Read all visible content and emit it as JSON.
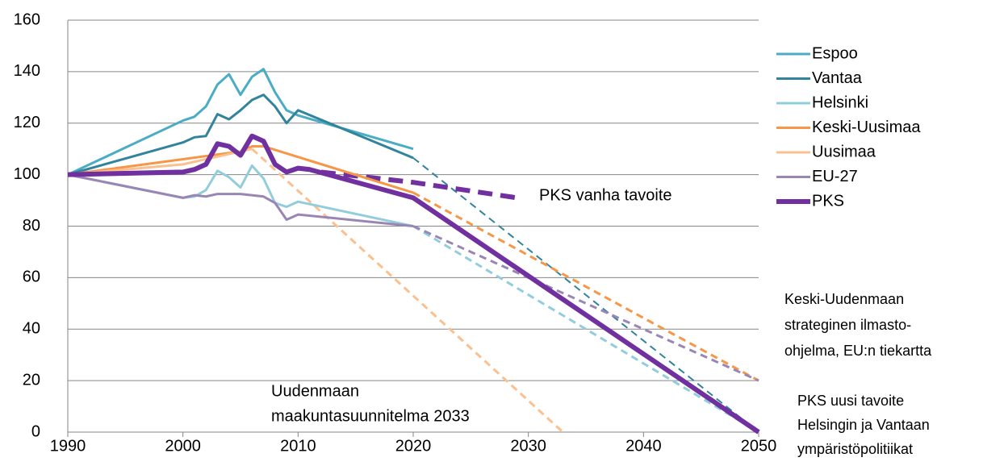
{
  "chart_data": {
    "type": "line",
    "xlim": [
      1990,
      2050
    ],
    "xticks": [
      1990,
      2000,
      2010,
      2020,
      2030,
      2040,
      2050
    ],
    "ylim": [
      0,
      160
    ],
    "yticks": [
      0,
      20,
      40,
      60,
      80,
      100,
      120,
      140,
      160
    ],
    "grid": true,
    "legend": "right",
    "series": [
      {
        "name": "Espoo",
        "color": "#4bacc6",
        "width": 3,
        "x": [
          1990,
          2000,
          2001,
          2002,
          2003,
          2004,
          2005,
          2006,
          2007,
          2008,
          2009,
          2010,
          2020
        ],
        "values": [
          100,
          121,
          122.5,
          126.5,
          135,
          139,
          131,
          138,
          141,
          132,
          125,
          123,
          110
        ]
      },
      {
        "name": "Vantaa",
        "color": "#31849b",
        "width": 3,
        "x": [
          1990,
          2000,
          2001,
          2002,
          2003,
          2004,
          2005,
          2006,
          2007,
          2008,
          2009,
          2010,
          2020
        ],
        "values": [
          100,
          112.5,
          114.5,
          115,
          123.5,
          121.5,
          125,
          129,
          131,
          126.5,
          120,
          125,
          106.5
        ],
        "projection": {
          "x": [
            2020,
            2050
          ],
          "values": [
            106.5,
            0
          ],
          "width": 2
        }
      },
      {
        "name": "Helsinki",
        "color": "#92cddc",
        "width": 3,
        "x": [
          1990,
          2000,
          2001,
          2002,
          2003,
          2004,
          2005,
          2006,
          2007,
          2008,
          2009,
          2010,
          2020
        ],
        "values": [
          100,
          91,
          91.5,
          94,
          101.5,
          99,
          95,
          103.5,
          98.5,
          89,
          87.5,
          89.5,
          80
        ],
        "projection": {
          "x": [
            2020,
            2050
          ],
          "values": [
            80,
            0
          ],
          "width": 3
        }
      },
      {
        "name": "Keski-Uusimaa",
        "color": "#f79646",
        "width": 3,
        "x": [
          1990,
          2000,
          2005,
          2006,
          2007,
          2020
        ],
        "values": [
          100,
          106,
          109,
          111,
          111,
          93
        ],
        "projection": {
          "x": [
            2020,
            2050
          ],
          "values": [
            93,
            20
          ],
          "width": 3
        }
      },
      {
        "name": "Uusimaa",
        "color": "#fac090",
        "width": 3,
        "x": [
          1990,
          2000,
          2004,
          2006
        ],
        "values": [
          100,
          104,
          108,
          110
        ],
        "projection": {
          "x": [
            2006,
            2033
          ],
          "values": [
            110,
            0
          ],
          "width": 3
        }
      },
      {
        "name": "EU-27",
        "color": "#9a86b4",
        "width": 3,
        "x": [
          1990,
          2000,
          2001,
          2002,
          2003,
          2005,
          2007,
          2008,
          2009,
          2010,
          2020
        ],
        "values": [
          100,
          91,
          92,
          91.5,
          92.5,
          92.5,
          91.5,
          89,
          82.5,
          84.5,
          80
        ],
        "projection": {
          "x": [
            2020,
            2050
          ],
          "values": [
            80,
            20
          ],
          "width": 3
        }
      },
      {
        "name": "PKS",
        "color": "#7030a0",
        "width": 6,
        "x": [
          1990,
          2000,
          2001,
          2002,
          2003,
          2004,
          2005,
          2006,
          2007,
          2008,
          2009,
          2010,
          2011,
          2020,
          2050
        ],
        "values": [
          100,
          101,
          102,
          104,
          112,
          111,
          107.5,
          115,
          113,
          104,
          101,
          102.5,
          102,
          91,
          0
        ],
        "projection": {
          "x": [
            2012,
            2020,
            2029
          ],
          "values": [
            101,
            97,
            91
          ],
          "width": 6
        }
      }
    ],
    "annotations": [
      {
        "lines": [
          "PKS vanha tavoite"
        ]
      },
      {
        "lines": [
          "Uudenmaan",
          "maakuntasuunnitelma 2033"
        ]
      },
      {
        "lines": [
          "Keski-Uudenmaan",
          "strateginen ilmasto-",
          "ohjelma, EU:n tiekartta"
        ]
      },
      {
        "lines": [
          "PKS uusi tavoite",
          "Helsingin ja Vantaan",
          "ympäristöpolitiikat"
        ]
      }
    ]
  }
}
